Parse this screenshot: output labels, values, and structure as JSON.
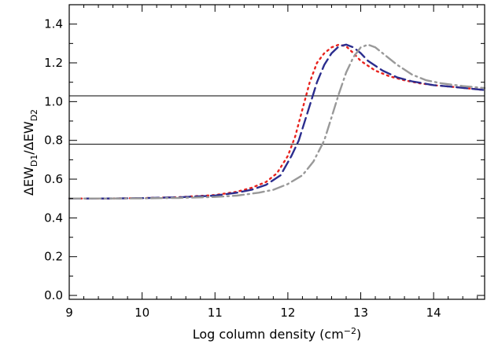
{
  "chart_data": {
    "type": "line",
    "xlabel_main": "Log column density (cm",
    "xlabel_sup": "−2",
    "xlabel_end": ")",
    "ylabel_delta1": "Δ",
    "ylabel_ew1": "EW",
    "ylabel_sub1": "D1",
    "ylabel_slash": "/",
    "ylabel_delta2": "Δ",
    "ylabel_ew2": "EW",
    "ylabel_sub2": "D2",
    "xlim": [
      9,
      14.7
    ],
    "ylim": [
      -0.02,
      1.5
    ],
    "xticks": [
      "9",
      "10",
      "11",
      "12",
      "13",
      "14"
    ],
    "xtick_values": [
      9,
      10,
      11,
      12,
      13,
      14
    ],
    "yticks": [
      "0.0",
      "0.2",
      "0.4",
      "0.6",
      "0.8",
      "1.0",
      "1.2",
      "1.4"
    ],
    "ytick_values": [
      0.0,
      0.2,
      0.4,
      0.6,
      0.8,
      1.0,
      1.2,
      1.4
    ],
    "hlines": [
      {
        "y": 1.03,
        "color": "#000000"
      },
      {
        "y": 0.78,
        "color": "#000000"
      }
    ],
    "series": [
      {
        "style": "dotted",
        "color": "#e8231e",
        "points": [
          [
            9.0,
            0.5
          ],
          [
            9.5,
            0.5
          ],
          [
            10.0,
            0.502
          ],
          [
            10.5,
            0.507
          ],
          [
            11.0,
            0.518
          ],
          [
            11.3,
            0.535
          ],
          [
            11.5,
            0.555
          ],
          [
            11.7,
            0.585
          ],
          [
            11.85,
            0.63
          ],
          [
            12.0,
            0.72
          ],
          [
            12.1,
            0.82
          ],
          [
            12.2,
            0.96
          ],
          [
            12.3,
            1.1
          ],
          [
            12.4,
            1.2
          ],
          [
            12.5,
            1.25
          ],
          [
            12.6,
            1.28
          ],
          [
            12.7,
            1.294
          ],
          [
            12.8,
            1.285
          ],
          [
            12.9,
            1.25
          ],
          [
            13.0,
            1.21
          ],
          [
            13.2,
            1.16
          ],
          [
            13.4,
            1.13
          ],
          [
            13.6,
            1.11
          ],
          [
            13.8,
            1.095
          ],
          [
            14.0,
            1.085
          ],
          [
            14.3,
            1.075
          ],
          [
            14.7,
            1.06
          ]
        ]
      },
      {
        "style": "dashed",
        "color": "#2b2d8e",
        "points": [
          [
            9.0,
            0.5
          ],
          [
            9.5,
            0.5
          ],
          [
            10.0,
            0.502
          ],
          [
            10.5,
            0.506
          ],
          [
            11.0,
            0.515
          ],
          [
            11.3,
            0.53
          ],
          [
            11.5,
            0.545
          ],
          [
            11.7,
            0.57
          ],
          [
            11.9,
            0.62
          ],
          [
            12.05,
            0.72
          ],
          [
            12.15,
            0.8
          ],
          [
            12.3,
            0.98
          ],
          [
            12.4,
            1.1
          ],
          [
            12.5,
            1.19
          ],
          [
            12.6,
            1.25
          ],
          [
            12.7,
            1.285
          ],
          [
            12.8,
            1.294
          ],
          [
            12.9,
            1.28
          ],
          [
            13.0,
            1.25
          ],
          [
            13.1,
            1.21
          ],
          [
            13.3,
            1.16
          ],
          [
            13.5,
            1.125
          ],
          [
            13.7,
            1.105
          ],
          [
            14.0,
            1.085
          ],
          [
            14.3,
            1.075
          ],
          [
            14.7,
            1.06
          ]
        ]
      },
      {
        "style": "dashdot",
        "color": "#999999",
        "points": [
          [
            9.0,
            0.5
          ],
          [
            9.5,
            0.5
          ],
          [
            10.0,
            0.501
          ],
          [
            10.5,
            0.503
          ],
          [
            11.0,
            0.508
          ],
          [
            11.3,
            0.515
          ],
          [
            11.6,
            0.53
          ],
          [
            11.8,
            0.545
          ],
          [
            12.0,
            0.575
          ],
          [
            12.2,
            0.62
          ],
          [
            12.35,
            0.69
          ],
          [
            12.5,
            0.8
          ],
          [
            12.6,
            0.92
          ],
          [
            12.7,
            1.04
          ],
          [
            12.8,
            1.15
          ],
          [
            12.9,
            1.23
          ],
          [
            13.0,
            1.28
          ],
          [
            13.1,
            1.294
          ],
          [
            13.2,
            1.28
          ],
          [
            13.3,
            1.25
          ],
          [
            13.5,
            1.19
          ],
          [
            13.7,
            1.14
          ],
          [
            13.9,
            1.11
          ],
          [
            14.1,
            1.095
          ],
          [
            14.4,
            1.08
          ],
          [
            14.7,
            1.07
          ]
        ]
      }
    ]
  }
}
